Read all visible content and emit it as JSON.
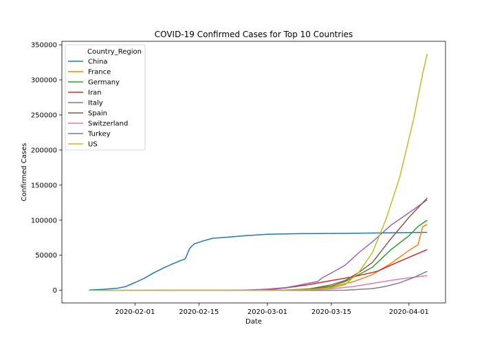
{
  "chart_data": {
    "type": "line",
    "title": "COVID-19 Confirmed Cases for Top 10 Countries",
    "xlabel": "Date",
    "ylabel": "Confirmed Cases",
    "x_axis": {
      "type": "date",
      "range": [
        "2020-01-16",
        "2020-04-09"
      ],
      "ticks": [
        "2020-02-01",
        "2020-02-15",
        "2020-03-01",
        "2020-03-15",
        "2020-04-01"
      ]
    },
    "y_axis": {
      "range": [
        -18000,
        355000
      ],
      "ticks": [
        0,
        50000,
        100000,
        150000,
        200000,
        250000,
        300000,
        350000
      ]
    },
    "grid": false,
    "legend": {
      "title": "Country_Region",
      "placement": "top-left"
    },
    "series": [
      {
        "name": "China",
        "color": "#1f77b4",
        "points": [
          [
            "2020-01-22",
            548
          ],
          [
            "2020-01-25",
            1406
          ],
          [
            "2020-01-28",
            2800
          ],
          [
            "2020-01-30",
            5500
          ],
          [
            "2020-02-01",
            11000
          ],
          [
            "2020-02-03",
            17000
          ],
          [
            "2020-02-05",
            24500
          ],
          [
            "2020-02-07",
            31000
          ],
          [
            "2020-02-09",
            37000
          ],
          [
            "2020-02-11",
            42500
          ],
          [
            "2020-02-12",
            44700
          ],
          [
            "2020-02-13",
            59900
          ],
          [
            "2020-02-14",
            66300
          ],
          [
            "2020-02-16",
            70500
          ],
          [
            "2020-02-18",
            74200
          ],
          [
            "2020-02-21",
            75600
          ],
          [
            "2020-02-25",
            77800
          ],
          [
            "2020-03-01",
            79900
          ],
          [
            "2020-03-08",
            80700
          ],
          [
            "2020-03-15",
            81000
          ],
          [
            "2020-03-25",
            81700
          ],
          [
            "2020-04-05",
            82600
          ]
        ]
      },
      {
        "name": "France",
        "color": "#ff7f0e",
        "points": [
          [
            "2020-01-22",
            0
          ],
          [
            "2020-02-25",
            14
          ],
          [
            "2020-03-01",
            130
          ],
          [
            "2020-03-05",
            420
          ],
          [
            "2020-03-10",
            1800
          ],
          [
            "2020-03-15",
            4500
          ],
          [
            "2020-03-20",
            12600
          ],
          [
            "2020-03-24",
            22300
          ],
          [
            "2020-03-28",
            38100
          ],
          [
            "2020-04-01",
            56900
          ],
          [
            "2020-04-03",
            65200
          ],
          [
            "2020-04-04",
            90800
          ],
          [
            "2020-04-05",
            93800
          ]
        ]
      },
      {
        "name": "Germany",
        "color": "#2ca02c",
        "points": [
          [
            "2020-01-22",
            0
          ],
          [
            "2020-02-25",
            16
          ],
          [
            "2020-03-01",
            130
          ],
          [
            "2020-03-05",
            480
          ],
          [
            "2020-03-10",
            1450
          ],
          [
            "2020-03-15",
            5800
          ],
          [
            "2020-03-18",
            12300
          ],
          [
            "2020-03-21",
            22200
          ],
          [
            "2020-03-24",
            32900
          ],
          [
            "2020-03-28",
            57700
          ],
          [
            "2020-04-01",
            77800
          ],
          [
            "2020-04-03",
            91100
          ],
          [
            "2020-04-05",
            100100
          ]
        ]
      },
      {
        "name": "Iran",
        "color": "#d62728",
        "points": [
          [
            "2020-01-22",
            0
          ],
          [
            "2020-02-19",
            2
          ],
          [
            "2020-02-25",
            95
          ],
          [
            "2020-03-01",
            980
          ],
          [
            "2020-03-05",
            3500
          ],
          [
            "2020-03-10",
            8000
          ],
          [
            "2020-03-15",
            13900
          ],
          [
            "2020-03-20",
            19600
          ],
          [
            "2020-03-25",
            27000
          ],
          [
            "2020-03-30",
            41500
          ],
          [
            "2020-04-05",
            58200
          ]
        ]
      },
      {
        "name": "Italy",
        "color": "#9467bd",
        "points": [
          [
            "2020-01-22",
            0
          ],
          [
            "2020-02-21",
            20
          ],
          [
            "2020-02-25",
            320
          ],
          [
            "2020-03-01",
            1700
          ],
          [
            "2020-03-05",
            3900
          ],
          [
            "2020-03-08",
            7400
          ],
          [
            "2020-03-10",
            10100
          ],
          [
            "2020-03-12",
            12500
          ],
          [
            "2020-03-13",
            17700
          ],
          [
            "2020-03-15",
            24700
          ],
          [
            "2020-03-18",
            35700
          ],
          [
            "2020-03-21",
            53600
          ],
          [
            "2020-03-24",
            69200
          ],
          [
            "2020-03-28",
            92500
          ],
          [
            "2020-04-01",
            110600
          ],
          [
            "2020-04-05",
            128900
          ]
        ]
      },
      {
        "name": "Spain",
        "color": "#8c564b",
        "points": [
          [
            "2020-01-22",
            0
          ],
          [
            "2020-02-25",
            6
          ],
          [
            "2020-03-01",
            84
          ],
          [
            "2020-03-05",
            280
          ],
          [
            "2020-03-10",
            1700
          ],
          [
            "2020-03-15",
            7800
          ],
          [
            "2020-03-18",
            13900
          ],
          [
            "2020-03-21",
            25400
          ],
          [
            "2020-03-24",
            39700
          ],
          [
            "2020-03-28",
            73200
          ],
          [
            "2020-04-01",
            104100
          ],
          [
            "2020-04-05",
            131600
          ]
        ]
      },
      {
        "name": "Switzerland",
        "color": "#e377c2",
        "points": [
          [
            "2020-01-22",
            0
          ],
          [
            "2020-02-25",
            1
          ],
          [
            "2020-03-01",
            42
          ],
          [
            "2020-03-05",
            110
          ],
          [
            "2020-03-10",
            500
          ],
          [
            "2020-03-15",
            2200
          ],
          [
            "2020-03-20",
            5600
          ],
          [
            "2020-03-24",
            9900
          ],
          [
            "2020-03-28",
            14100
          ],
          [
            "2020-04-01",
            17800
          ],
          [
            "2020-04-05",
            21100
          ]
        ]
      },
      {
        "name": "Turkey",
        "color": "#7f7f7f",
        "points": [
          [
            "2020-01-22",
            0
          ],
          [
            "2020-03-11",
            1
          ],
          [
            "2020-03-15",
            47
          ],
          [
            "2020-03-18",
            190
          ],
          [
            "2020-03-21",
            1200
          ],
          [
            "2020-03-24",
            2400
          ],
          [
            "2020-03-27",
            5700
          ],
          [
            "2020-03-30",
            10800
          ],
          [
            "2020-04-02",
            18100
          ],
          [
            "2020-04-05",
            27100
          ]
        ]
      },
      {
        "name": "US",
        "color": "#bcbd22",
        "points": [
          [
            "2020-01-22",
            1
          ],
          [
            "2020-02-25",
            53
          ],
          [
            "2020-03-01",
            75
          ],
          [
            "2020-03-05",
            220
          ],
          [
            "2020-03-10",
            960
          ],
          [
            "2020-03-15",
            3500
          ],
          [
            "2020-03-18",
            7800
          ],
          [
            "2020-03-21",
            25500
          ],
          [
            "2020-03-24",
            53700
          ],
          [
            "2020-03-27",
            101600
          ],
          [
            "2020-03-30",
            161800
          ],
          [
            "2020-04-02",
            243600
          ],
          [
            "2020-04-04",
            308800
          ],
          [
            "2020-04-05",
            337000
          ]
        ]
      }
    ]
  }
}
